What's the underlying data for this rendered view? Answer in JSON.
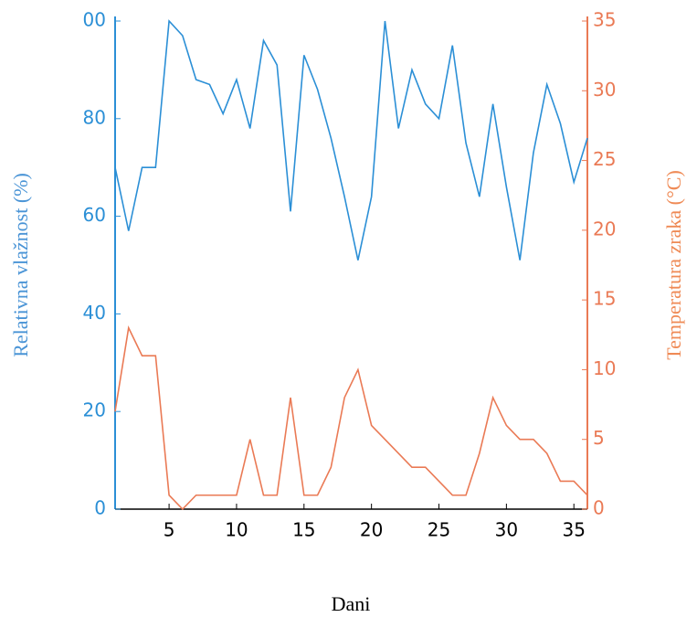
{
  "chart_data": {
    "type": "line",
    "x_label": "Dani",
    "y_label": "Relativna vlažnost (%)",
    "y2_label": "Temperatura zraka (°C)",
    "x": [
      1,
      2,
      3,
      4,
      5,
      6,
      7,
      8,
      9,
      10,
      11,
      12,
      13,
      14,
      15,
      16,
      17,
      18,
      19,
      20,
      21,
      22,
      23,
      24,
      25,
      26,
      27,
      28,
      29,
      30,
      31,
      32,
      33,
      34,
      35,
      36
    ],
    "xlim": [
      1,
      36
    ],
    "xticks": [
      5,
      10,
      15,
      20,
      25,
      30,
      35
    ],
    "ylim": [
      0,
      100
    ],
    "yticks": [
      0,
      20,
      40,
      60,
      80,
      {
        "value": 100,
        "label": "00"
      }
    ],
    "y2lim": [
      0,
      35
    ],
    "y2ticks": [
      0,
      5,
      10,
      15,
      20,
      25,
      30,
      35
    ],
    "grid": false,
    "series": [
      {
        "name": "Relativna vlažnost",
        "color": "#2b8fd6",
        "values": [
          70,
          57,
          70,
          70,
          100,
          97,
          88,
          87,
          81,
          88,
          78,
          96,
          91,
          61,
          93,
          86,
          76,
          64,
          51,
          64,
          100,
          78,
          90,
          83,
          80,
          95,
          75,
          64,
          83,
          66,
          51,
          73,
          87,
          79,
          67,
          76
        ]
      },
      {
        "name": "Temperatura zraka",
        "color": "#ea7a55",
        "axis": "y2",
        "values": [
          7,
          13,
          11,
          11,
          1,
          0,
          1,
          1,
          1,
          1,
          5,
          1,
          1,
          8,
          1,
          1,
          3,
          8,
          10,
          6,
          5,
          4,
          3,
          3,
          2,
          1,
          1,
          4,
          8,
          6,
          5,
          5,
          4,
          2,
          2,
          1
        ]
      }
    ]
  }
}
